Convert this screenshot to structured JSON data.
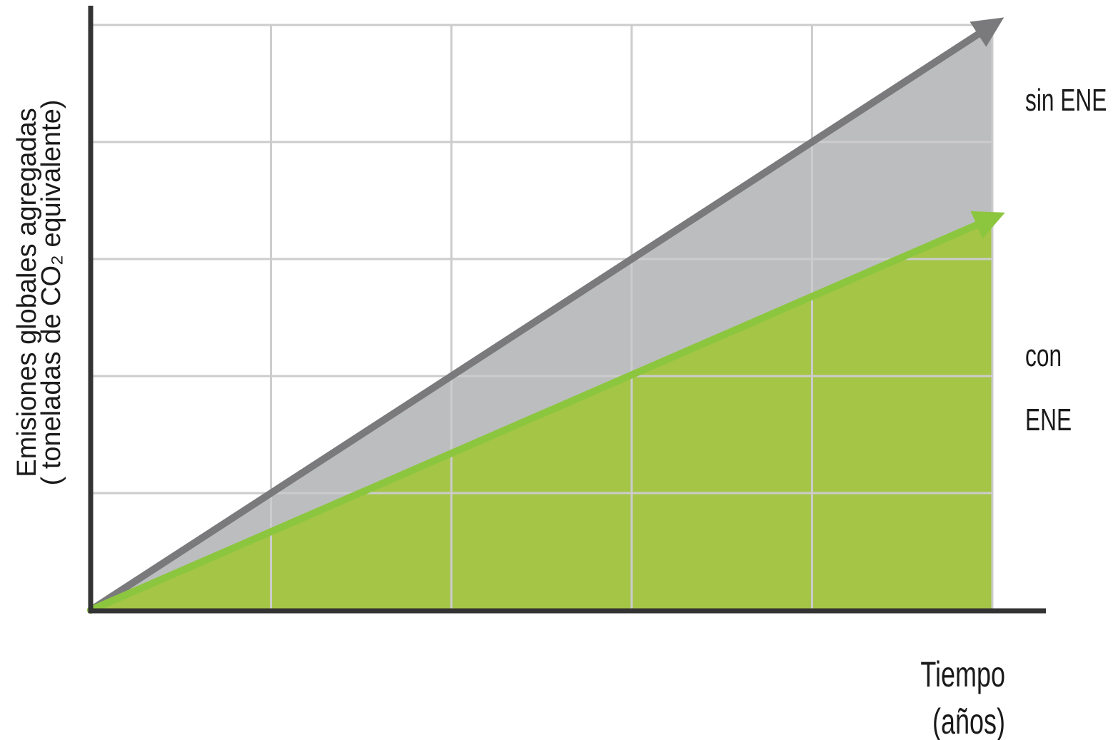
{
  "chart_data": {
    "type": "area",
    "title": "",
    "xlabel_lines": [
      "Tiempo",
      "(años)"
    ],
    "ylabel_lines": [
      "Emisiones globales agregadas",
      "( toneladas de CO₂ equivalente)"
    ],
    "xlim": [
      0,
      10
    ],
    "ylim": [
      0,
      5
    ],
    "x_gridlines": [
      2,
      4,
      6,
      8,
      10
    ],
    "y_gridlines": [
      1,
      2,
      3,
      4,
      5
    ],
    "grid": true,
    "series": [
      {
        "name_lines": [
          "sin ENE"
        ],
        "x": [
          0,
          10
        ],
        "y": [
          0,
          5.0
        ],
        "fill_color": "#bcbdbf",
        "line_color": "#7a7a7c"
      },
      {
        "name_lines": [
          "con",
          "ENE"
        ],
        "x": [
          0,
          10
        ],
        "y": [
          0,
          3.35
        ],
        "fill_color": "#a4c546",
        "line_color": "#8cc63f"
      }
    ],
    "colors": {
      "axis": "#333333",
      "grid": "#cccccc"
    }
  }
}
